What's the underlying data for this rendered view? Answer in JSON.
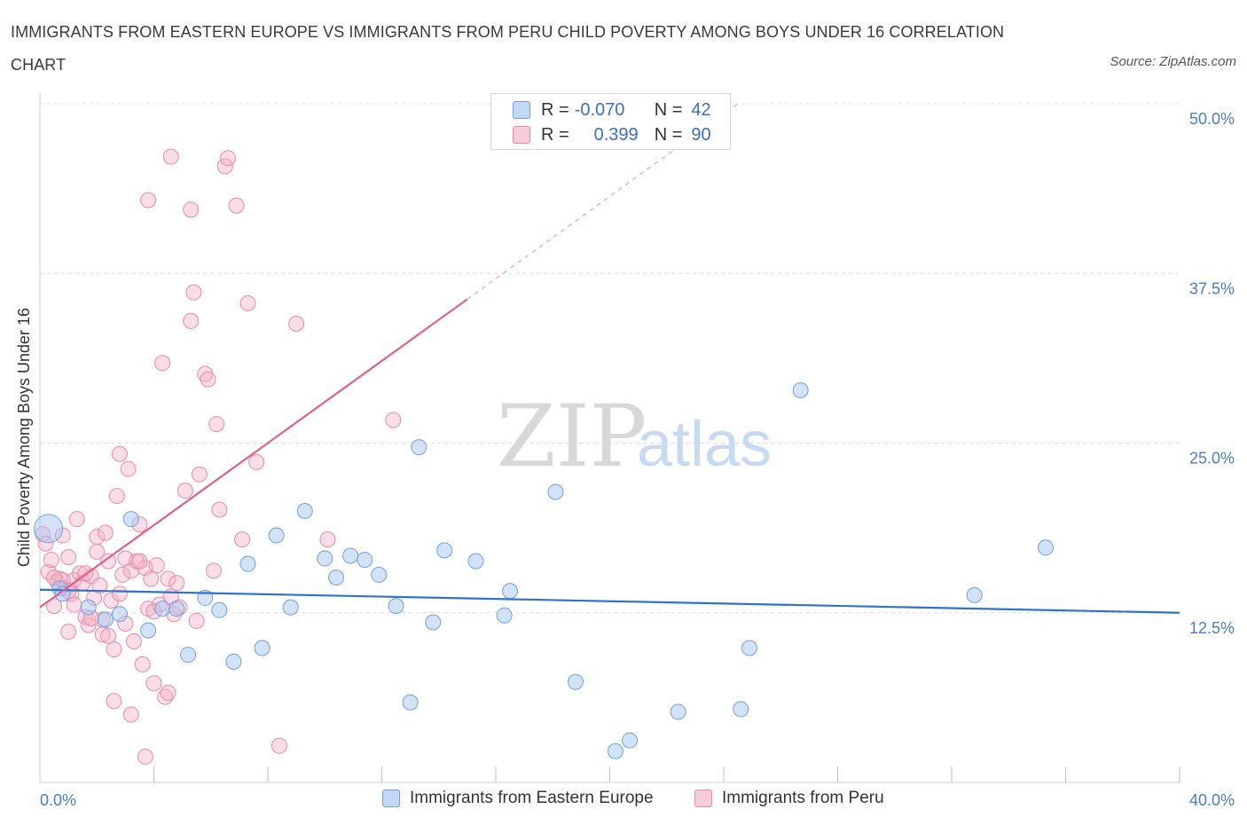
{
  "title": "IMMIGRANTS FROM EASTERN EUROPE VS IMMIGRANTS FROM PERU CHILD POVERTY AMONG BOYS UNDER 16 CORRELATION CHART",
  "source": "Source: ZipAtlas.com",
  "watermark": {
    "zip": "ZIP",
    "atlas": "atlas"
  },
  "legend": {
    "rows": [
      {
        "r_label": "R =",
        "r_value": "-0.070",
        "n_label": "N =",
        "n_value": "42"
      },
      {
        "r_label": "R =",
        "r_value": "0.399",
        "n_label": "N =",
        "n_value": "90"
      }
    ]
  },
  "colors": {
    "blue_fill": "#a8c8f0",
    "blue_stroke": "#6f9fe0",
    "blue_line": "#2f72cf",
    "pink_fill": "#f5b3c8",
    "pink_stroke": "#e88aa8",
    "pink_line": "#e0608a",
    "grid": "#dcdcdc",
    "tick_text": "#4a7cc7"
  },
  "chart_data": {
    "type": "scatter",
    "xlabel": "",
    "ylabel": "Child Poverty Among Boys Under 16",
    "xlim": [
      0,
      40
    ],
    "ylim": [
      0,
      50
    ],
    "x_tick_labels": [
      "0.0%",
      "40.0%"
    ],
    "y_ticks": [
      12.5,
      25.0,
      37.5,
      50.0
    ],
    "y_tick_labels": [
      "12.5%",
      "25.0%",
      "37.5%",
      "50.0%"
    ],
    "series": [
      {
        "name": "Immigrants from Eastern Europe",
        "color": "blue",
        "trend": {
          "x": [
            0,
            40
          ],
          "y": [
            14.2,
            12.5
          ],
          "style": "solid"
        },
        "points": [
          [
            0.3,
            18.7
          ],
          [
            0.7,
            14.3
          ],
          [
            0.8,
            13.9
          ],
          [
            1.7,
            12.9
          ],
          [
            2.3,
            12.0
          ],
          [
            2.8,
            12.4
          ],
          [
            3.2,
            19.4
          ],
          [
            3.8,
            11.2
          ],
          [
            4.3,
            12.8
          ],
          [
            4.8,
            12.8
          ],
          [
            5.2,
            9.4
          ],
          [
            5.8,
            13.6
          ],
          [
            6.3,
            12.7
          ],
          [
            6.8,
            8.9
          ],
          [
            7.3,
            16.1
          ],
          [
            7.8,
            9.9
          ],
          [
            8.3,
            18.2
          ],
          [
            8.8,
            12.9
          ],
          [
            9.3,
            20.0
          ],
          [
            10.0,
            16.5
          ],
          [
            10.4,
            15.1
          ],
          [
            10.9,
            16.7
          ],
          [
            11.4,
            16.4
          ],
          [
            11.9,
            15.3
          ],
          [
            12.5,
            13.0
          ],
          [
            13.0,
            5.9
          ],
          [
            13.3,
            24.7
          ],
          [
            13.8,
            11.8
          ],
          [
            14.2,
            17.1
          ],
          [
            15.3,
            16.3
          ],
          [
            16.3,
            12.3
          ],
          [
            16.5,
            14.1
          ],
          [
            18.1,
            21.4
          ],
          [
            18.8,
            7.4
          ],
          [
            20.2,
            2.3
          ],
          [
            20.7,
            3.1
          ],
          [
            22.4,
            5.2
          ],
          [
            24.6,
            5.4
          ],
          [
            24.9,
            9.9
          ],
          [
            26.7,
            28.9
          ],
          [
            32.8,
            13.8
          ],
          [
            35.3,
            17.3
          ]
        ]
      },
      {
        "name": "Immigrants from Peru",
        "color": "pink",
        "trend": {
          "x": [
            0,
            15
          ],
          "y": [
            12.9,
            35.6
          ],
          "dashed_to": [
            24.5,
            50.0
          ],
          "style": "solid-then-dashed"
        },
        "points": [
          [
            0.1,
            18.3
          ],
          [
            0.2,
            17.6
          ],
          [
            0.3,
            15.5
          ],
          [
            0.4,
            16.4
          ],
          [
            0.5,
            13.0
          ],
          [
            0.6,
            14.8
          ],
          [
            0.7,
            15.0
          ],
          [
            0.8,
            18.2
          ],
          [
            0.9,
            14.3
          ],
          [
            1.0,
            11.1
          ],
          [
            1.0,
            16.6
          ],
          [
            1.1,
            13.9
          ],
          [
            1.2,
            14.9
          ],
          [
            1.3,
            19.4
          ],
          [
            1.4,
            15.4
          ],
          [
            1.5,
            14.7
          ],
          [
            1.6,
            12.2
          ],
          [
            1.7,
            11.6
          ],
          [
            1.8,
            15.2
          ],
          [
            1.9,
            13.6
          ],
          [
            2.0,
            18.1
          ],
          [
            2.0,
            17.0
          ],
          [
            2.1,
            14.5
          ],
          [
            2.2,
            10.9
          ],
          [
            2.3,
            18.4
          ],
          [
            2.4,
            10.8
          ],
          [
            2.5,
            13.4
          ],
          [
            2.6,
            9.8
          ],
          [
            2.7,
            21.1
          ],
          [
            2.8,
            24.2
          ],
          [
            2.9,
            15.3
          ],
          [
            3.0,
            16.5
          ],
          [
            3.1,
            23.1
          ],
          [
            3.2,
            15.6
          ],
          [
            3.3,
            10.4
          ],
          [
            3.4,
            16.3
          ],
          [
            3.5,
            19.0
          ],
          [
            3.6,
            8.7
          ],
          [
            3.7,
            15.8
          ],
          [
            3.8,
            12.8
          ],
          [
            3.9,
            15.0
          ],
          [
            4.0,
            7.3
          ],
          [
            4.1,
            16.0
          ],
          [
            4.2,
            13.1
          ],
          [
            4.3,
            30.9
          ],
          [
            4.4,
            6.3
          ],
          [
            4.5,
            15.0
          ],
          [
            4.6,
            13.7
          ],
          [
            4.7,
            12.4
          ],
          [
            4.8,
            14.7
          ],
          [
            4.9,
            12.9
          ],
          [
            5.1,
            21.5
          ],
          [
            5.3,
            34.0
          ],
          [
            5.4,
            36.1
          ],
          [
            5.5,
            11.9
          ],
          [
            5.6,
            22.7
          ],
          [
            5.8,
            30.1
          ],
          [
            5.9,
            29.7
          ],
          [
            6.1,
            15.6
          ],
          [
            6.2,
            26.4
          ],
          [
            6.3,
            20.1
          ],
          [
            6.5,
            45.4
          ],
          [
            6.6,
            46.0
          ],
          [
            6.9,
            42.5
          ],
          [
            7.1,
            17.9
          ],
          [
            7.3,
            35.3
          ],
          [
            7.6,
            23.6
          ],
          [
            8.4,
            2.7
          ],
          [
            9.0,
            33.8
          ],
          [
            10.1,
            17.9
          ],
          [
            12.4,
            26.7
          ],
          [
            2.6,
            6.0
          ],
          [
            3.2,
            5.0
          ],
          [
            3.7,
            1.9
          ],
          [
            4.5,
            6.6
          ],
          [
            1.2,
            13.1
          ],
          [
            2.2,
            12.0
          ],
          [
            3.8,
            42.9
          ],
          [
            5.3,
            42.2
          ],
          [
            4.6,
            46.1
          ],
          [
            0.8,
            14.9
          ],
          [
            1.8,
            12.1
          ],
          [
            2.8,
            13.9
          ],
          [
            3.5,
            16.3
          ],
          [
            0.5,
            15.1
          ],
          [
            1.6,
            15.4
          ],
          [
            2.4,
            16.3
          ],
          [
            4.0,
            12.6
          ],
          [
            1.0,
            14.1
          ],
          [
            3.0,
            11.7
          ]
        ]
      }
    ]
  },
  "bottom_legend": [
    "Immigrants from Eastern Europe",
    "Immigrants from Peru"
  ]
}
